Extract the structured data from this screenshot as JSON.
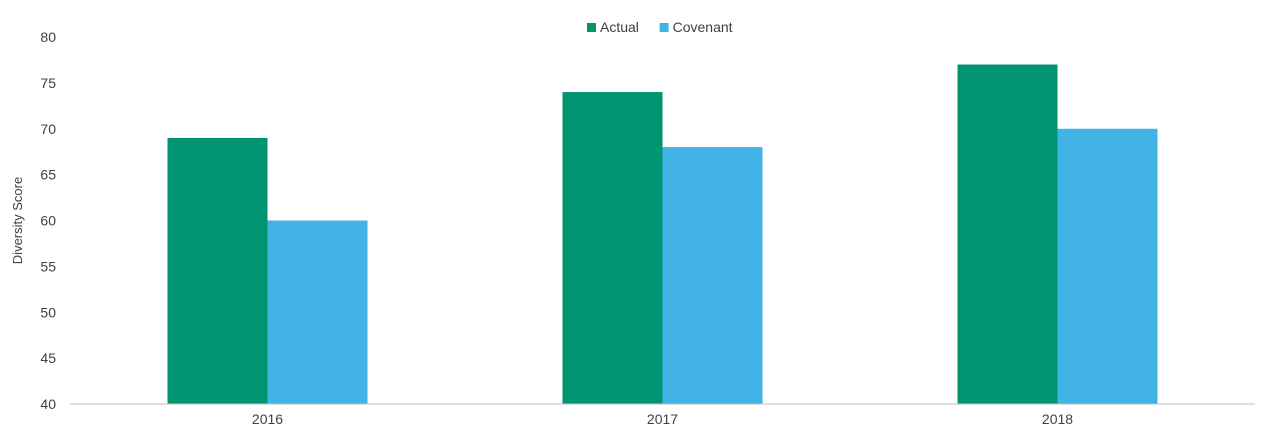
{
  "chart_data": {
    "type": "bar",
    "title": "",
    "xlabel": "",
    "ylabel": "Diversity Score",
    "categories": [
      "2016",
      "2017",
      "2018"
    ],
    "series": [
      {
        "name": "Actual",
        "values": [
          69,
          74,
          77
        ],
        "color": "#009473"
      },
      {
        "name": "Covenant",
        "values": [
          60,
          68,
          70
        ],
        "color": "#41b3e5"
      }
    ],
    "ylim": [
      40,
      80
    ],
    "yticks": [
      40,
      45,
      50,
      55,
      60,
      65,
      70,
      75,
      80
    ],
    "grid": false,
    "legend_position": "top-center"
  }
}
